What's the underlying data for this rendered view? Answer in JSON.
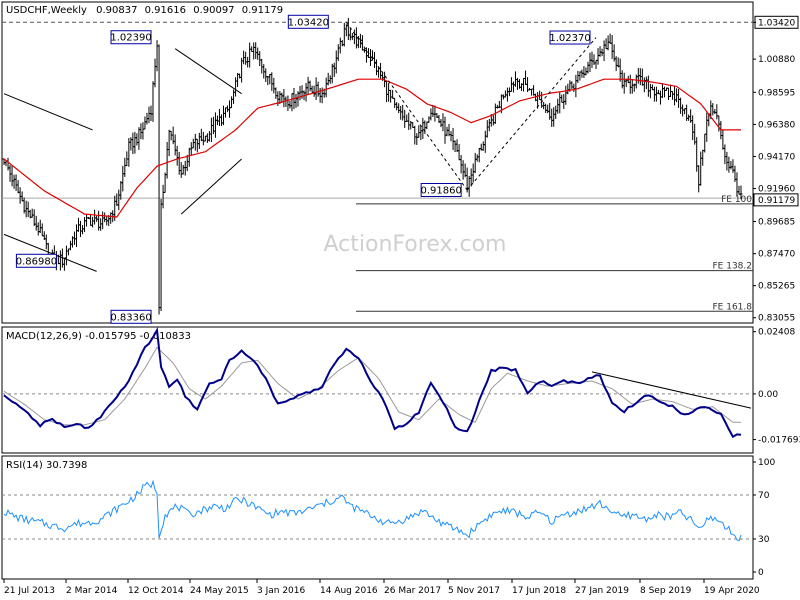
{
  "chart_data": [
    {
      "type": "candlestick",
      "title": "USDCHF,Weekly",
      "ohlc_readout": [
        "0.90837",
        "0.91616",
        "0.90097",
        "0.91179"
      ],
      "watermark": "ActionForex.com",
      "ylim": [
        0.8276,
        1.0475
      ],
      "y_ticks": [
        "1.03420",
        "1.00880",
        "0.98595",
        "0.96380",
        "0.94170",
        "0.91960",
        "0.89685",
        "0.87470",
        "0.85265",
        "0.83055"
      ],
      "current_price": "0.91179",
      "x_tick_labels": [
        "21 Jul 2013",
        "2 Mar 2014",
        "12 Oct 2014",
        "24 May 2015",
        "3 Jan 2016",
        "14 Aug 2016",
        "26 Mar 2017",
        "5 Nov 2017",
        "17 Jun 2018",
        "27 Jan 2019",
        "8 Sep 2019",
        "19 Apr 2020"
      ],
      "price_path": [
        [
          0,
          0.94
        ],
        [
          6,
          0.92
        ],
        [
          11,
          0.905
        ],
        [
          17,
          0.892
        ],
        [
          23,
          0.872
        ],
        [
          29,
          0.87
        ],
        [
          35,
          0.888
        ],
        [
          42,
          0.898
        ],
        [
          50,
          0.895
        ],
        [
          56,
          0.91
        ],
        [
          62,
          0.948
        ],
        [
          68,
          0.958
        ],
        [
          73,
          0.975
        ],
        [
          76,
          1.02
        ],
        [
          77,
          0.835
        ],
        [
          78,
          0.905
        ],
        [
          82,
          0.96
        ],
        [
          88,
          0.93
        ],
        [
          94,
          0.95
        ],
        [
          100,
          0.955
        ],
        [
          106,
          0.965
        ],
        [
          112,
          0.975
        ],
        [
          118,
          1.005
        ],
        [
          124,
          1.015
        ],
        [
          130,
          1.0
        ],
        [
          136,
          0.985
        ],
        [
          142,
          0.98
        ],
        [
          150,
          0.99
        ],
        [
          158,
          0.985
        ],
        [
          164,
          1.005
        ],
        [
          170,
          1.03
        ],
        [
          176,
          1.02
        ],
        [
          182,
          1.01
        ],
        [
          188,
          0.995
        ],
        [
          194,
          0.975
        ],
        [
          200,
          0.965
        ],
        [
          206,
          0.955
        ],
        [
          212,
          0.975
        ],
        [
          218,
          0.962
        ],
        [
          225,
          0.945
        ],
        [
          230,
          0.922
        ],
        [
          236,
          0.945
        ],
        [
          242,
          0.965
        ],
        [
          248,
          0.985
        ],
        [
          254,
          0.995
        ],
        [
          260,
          0.99
        ],
        [
          266,
          0.98
        ],
        [
          272,
          0.97
        ],
        [
          276,
          0.98
        ],
        [
          282,
          0.99
        ],
        [
          288,
          1.0
        ],
        [
          294,
          1.01
        ],
        [
          300,
          1.02
        ],
        [
          304,
          1.005
        ],
        [
          308,
          0.99
        ],
        [
          314,
          0.995
        ],
        [
          320,
          0.99
        ],
        [
          326,
          0.985
        ],
        [
          332,
          0.985
        ],
        [
          338,
          0.975
        ],
        [
          342,
          0.96
        ],
        [
          345,
          0.925
        ],
        [
          348,
          0.96
        ],
        [
          351,
          0.975
        ],
        [
          355,
          0.965
        ],
        [
          358,
          0.942
        ],
        [
          362,
          0.93
        ],
        [
          366,
          0.912
        ]
      ],
      "moving_average": [
        [
          0,
          0.94
        ],
        [
          20,
          0.918
        ],
        [
          40,
          0.902
        ],
        [
          56,
          0.9
        ],
        [
          66,
          0.92
        ],
        [
          76,
          0.935
        ],
        [
          86,
          0.94
        ],
        [
          100,
          0.945
        ],
        [
          115,
          0.96
        ],
        [
          126,
          0.975
        ],
        [
          140,
          0.98
        ],
        [
          160,
          0.988
        ],
        [
          176,
          0.995
        ],
        [
          188,
          0.995
        ],
        [
          200,
          0.988
        ],
        [
          210,
          0.978
        ],
        [
          222,
          0.972
        ],
        [
          232,
          0.965
        ],
        [
          242,
          0.97
        ],
        [
          256,
          0.98
        ],
        [
          270,
          0.985
        ],
        [
          284,
          0.988
        ],
        [
          298,
          0.995
        ],
        [
          310,
          0.995
        ],
        [
          322,
          0.993
        ],
        [
          334,
          0.99
        ],
        [
          346,
          0.978
        ],
        [
          356,
          0.96
        ]
      ],
      "annotations": [
        {
          "label": "1.03420",
          "i": 170,
          "value": 1.0342,
          "place": "above"
        },
        {
          "label": "1.02390",
          "i": 76,
          "value": 1.0239,
          "place": "left"
        },
        {
          "label": "1.02370",
          "i": 294,
          "value": 1.0237,
          "place": "left"
        },
        {
          "label": "0.91860",
          "i": 230,
          "value": 0.9186,
          "place": "left"
        },
        {
          "label": "0.86980",
          "i": 29,
          "value": 0.8698,
          "place": "left"
        },
        {
          "label": "0.83360",
          "i": 77,
          "value": 0.8336,
          "place": "below-left"
        }
      ],
      "fib_levels": [
        {
          "label": "FE 100",
          "value": 0.909
        },
        {
          "label": "FE 138.2",
          "value": 0.863
        },
        {
          "label": "FE 161.8",
          "value": 0.835
        }
      ],
      "horizontal_levels": [
        1.0342,
        0.913
      ],
      "trendlines": [
        {
          "from": [
            0,
            0.985
          ],
          "to": [
            44,
            0.96
          ]
        },
        {
          "from": [
            0,
            0.888
          ],
          "to": [
            46,
            0.8625
          ]
        },
        {
          "from": [
            85,
            1.016
          ],
          "to": [
            118,
            0.985
          ]
        },
        {
          "from": [
            88,
            0.902
          ],
          "to": [
            118,
            0.94
          ]
        },
        {
          "from": [
            170,
            1.0342
          ],
          "to": [
            230,
            0.9186
          ]
        },
        {
          "from": [
            230,
            0.9186
          ],
          "to": [
            294,
            1.0237
          ]
        }
      ],
      "macd": {
        "label": "MACD(12,26,9) -0.015795 -0.010833",
        "ylim": [
          -0.0225,
          0.0255
        ],
        "y_ticks": [
          "0.02408",
          "0.00",
          "-0.017693"
        ],
        "main": [
          [
            0,
            0.0
          ],
          [
            6,
            -0.004
          ],
          [
            12,
            -0.008
          ],
          [
            18,
            -0.012
          ],
          [
            24,
            -0.01
          ],
          [
            30,
            -0.013
          ],
          [
            36,
            -0.012
          ],
          [
            42,
            -0.013
          ],
          [
            48,
            -0.009
          ],
          [
            54,
            -0.003
          ],
          [
            60,
            0.003
          ],
          [
            66,
            0.011
          ],
          [
            70,
            0.018
          ],
          [
            74,
            0.022
          ],
          [
            76,
            0.025
          ],
          [
            78,
            0.01
          ],
          [
            82,
            0.003
          ],
          [
            86,
            0.006
          ],
          [
            90,
            -0.001
          ],
          [
            96,
            -0.006
          ],
          [
            102,
            0.004
          ],
          [
            108,
            0.006
          ],
          [
            112,
            0.013
          ],
          [
            118,
            0.017
          ],
          [
            124,
            0.013
          ],
          [
            130,
            0.006
          ],
          [
            136,
            -0.004
          ],
          [
            142,
            -0.002
          ],
          [
            150,
            0.0
          ],
          [
            158,
            0.003
          ],
          [
            164,
            0.012
          ],
          [
            170,
            0.017
          ],
          [
            176,
            0.014
          ],
          [
            182,
            0.005
          ],
          [
            188,
            -0.002
          ],
          [
            194,
            -0.013
          ],
          [
            200,
            -0.012
          ],
          [
            206,
            -0.007
          ],
          [
            212,
            0.004
          ],
          [
            218,
            -0.003
          ],
          [
            224,
            -0.013
          ],
          [
            230,
            -0.015
          ],
          [
            236,
            -0.003
          ],
          [
            242,
            0.009
          ],
          [
            248,
            0.01
          ],
          [
            254,
            0.009
          ],
          [
            260,
            0.0
          ],
          [
            266,
            0.005
          ],
          [
            272,
            0.003
          ],
          [
            278,
            0.005
          ],
          [
            284,
            0.004
          ],
          [
            290,
            0.006
          ],
          [
            296,
            0.007
          ],
          [
            302,
            -0.004
          ],
          [
            308,
            -0.007
          ],
          [
            314,
            -0.003
          ],
          [
            320,
            0.0
          ],
          [
            326,
            -0.003
          ],
          [
            332,
            -0.005
          ],
          [
            338,
            -0.008
          ],
          [
            344,
            -0.006
          ],
          [
            350,
            -0.005
          ],
          [
            356,
            -0.008
          ],
          [
            362,
            -0.016
          ]
        ],
        "signal": [
          [
            0,
            0.001
          ],
          [
            10,
            -0.004
          ],
          [
            20,
            -0.01
          ],
          [
            30,
            -0.012
          ],
          [
            40,
            -0.012
          ],
          [
            50,
            -0.01
          ],
          [
            60,
            -0.002
          ],
          [
            70,
            0.01
          ],
          [
            76,
            0.018
          ],
          [
            84,
            0.012
          ],
          [
            92,
            0.002
          ],
          [
            100,
            -0.002
          ],
          [
            108,
            0.003
          ],
          [
            118,
            0.012
          ],
          [
            126,
            0.013
          ],
          [
            136,
            0.004
          ],
          [
            146,
            -0.002
          ],
          [
            156,
            0.002
          ],
          [
            166,
            0.009
          ],
          [
            176,
            0.014
          ],
          [
            186,
            0.006
          ],
          [
            196,
            -0.007
          ],
          [
            206,
            -0.01
          ],
          [
            216,
            -0.002
          ],
          [
            226,
            -0.008
          ],
          [
            234,
            -0.011
          ],
          [
            242,
            0.002
          ],
          [
            250,
            0.008
          ],
          [
            260,
            0.005
          ],
          [
            270,
            0.003
          ],
          [
            280,
            0.004
          ],
          [
            292,
            0.005
          ],
          [
            302,
            0.002
          ],
          [
            312,
            -0.004
          ],
          [
            322,
            -0.002
          ],
          [
            332,
            -0.003
          ],
          [
            342,
            -0.006
          ],
          [
            352,
            -0.005
          ],
          [
            362,
            -0.011
          ]
        ],
        "trendline": {
          "from": [
            292,
            0.0085
          ],
          "to": [
            366,
            -0.0055
          ]
        }
      },
      "rsi": {
        "label": "RSI(14) 30.7398",
        "ylim": [
          0,
          100
        ],
        "y_ticks": [
          100,
          70,
          30,
          0
        ],
        "levels": [
          70,
          30
        ],
        "values": [
          [
            0,
            55
          ],
          [
            6,
            50
          ],
          [
            12,
            47
          ],
          [
            18,
            45
          ],
          [
            24,
            42
          ],
          [
            30,
            40
          ],
          [
            36,
            44
          ],
          [
            42,
            45
          ],
          [
            48,
            48
          ],
          [
            54,
            55
          ],
          [
            60,
            62
          ],
          [
            66,
            70
          ],
          [
            70,
            78
          ],
          [
            74,
            80
          ],
          [
            76,
            73
          ],
          [
            77,
            34
          ],
          [
            80,
            52
          ],
          [
            86,
            60
          ],
          [
            92,
            52
          ],
          [
            98,
            56
          ],
          [
            104,
            60
          ],
          [
            110,
            58
          ],
          [
            116,
            66
          ],
          [
            120,
            64
          ],
          [
            126,
            58
          ],
          [
            132,
            52
          ],
          [
            138,
            55
          ],
          [
            144,
            53
          ],
          [
            150,
            56
          ],
          [
            156,
            60
          ],
          [
            162,
            64
          ],
          [
            168,
            68
          ],
          [
            172,
            60
          ],
          [
            178,
            55
          ],
          [
            184,
            50
          ],
          [
            190,
            44
          ],
          [
            196,
            46
          ],
          [
            202,
            50
          ],
          [
            208,
            56
          ],
          [
            214,
            48
          ],
          [
            220,
            42
          ],
          [
            226,
            38
          ],
          [
            230,
            33
          ],
          [
            236,
            44
          ],
          [
            242,
            52
          ],
          [
            248,
            56
          ],
          [
            254,
            54
          ],
          [
            260,
            50
          ],
          [
            266,
            54
          ],
          [
            272,
            46
          ],
          [
            278,
            52
          ],
          [
            284,
            55
          ],
          [
            290,
            58
          ],
          [
            296,
            62
          ],
          [
            300,
            58
          ],
          [
            306,
            50
          ],
          [
            312,
            52
          ],
          [
            318,
            48
          ],
          [
            324,
            52
          ],
          [
            330,
            50
          ],
          [
            336,
            54
          ],
          [
            342,
            46
          ],
          [
            346,
            38
          ],
          [
            350,
            50
          ],
          [
            356,
            46
          ],
          [
            362,
            34
          ],
          [
            366,
            31
          ]
        ]
      }
    }
  ]
}
